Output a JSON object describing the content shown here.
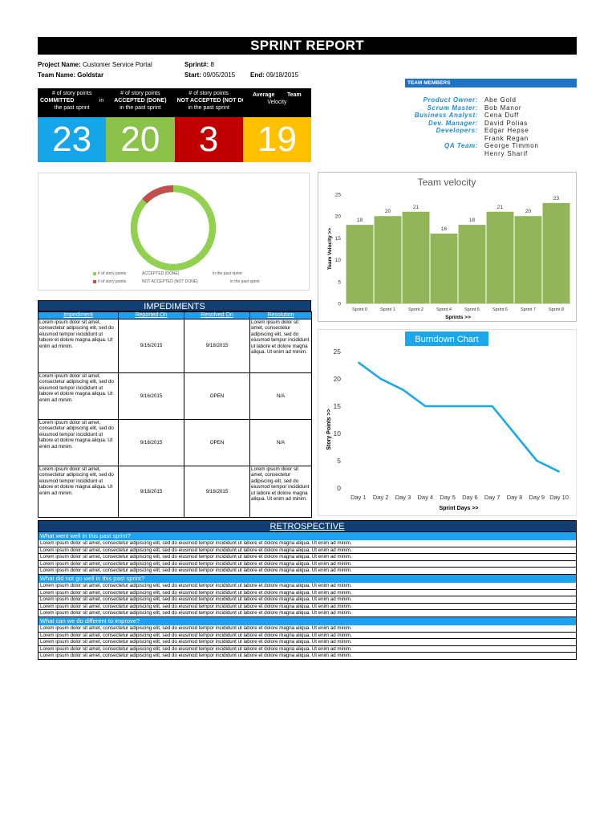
{
  "report": {
    "title": "SPRINT REPORT",
    "project_label": "Project Name:",
    "project_value": "Customer Service Portal",
    "sprint_label": "Sprint#:",
    "sprint_value": "8",
    "team_label": "Team Name:",
    "team_value": "Goldstar",
    "start_label": "Start:",
    "start_value": "09/05/2015",
    "end_label": "End:",
    "end_value": "09/18/2015"
  },
  "team_members": {
    "header": "TEAM MEMBERS",
    "rows": [
      {
        "role": "Product Owner:",
        "name": "Abe Gold"
      },
      {
        "role": "Scrum Master:",
        "name": "Bob Manor"
      },
      {
        "role": "Business Analyst:",
        "name": "Cena Duff"
      },
      {
        "role": "Dev. Manager:",
        "name": "David Polias"
      },
      {
        "role": "Developers:",
        "name": "Edgar Hepse"
      },
      {
        "role": "",
        "name": "Frank Regan"
      },
      {
        "role": "QA Team:",
        "name": "George Timmon"
      },
      {
        "role": "",
        "name": "Henry Sharif"
      }
    ]
  },
  "stats": [
    {
      "line1": "# of story points",
      "bold": "COMMITTED",
      "suffix": "in",
      "line3": "the past sprint",
      "value": "23",
      "color": "#16a5e8"
    },
    {
      "line1": "# of story points",
      "bold": "ACCEPTED (DONE)",
      "suffix": "",
      "line3": "in the past sprint",
      "value": "20",
      "color": "#8bc34a"
    },
    {
      "line1": "# of story points",
      "bold": "NOT ACCEPTED (NOT DONE)",
      "suffix": "",
      "line3": "in the past sprint",
      "value": "3",
      "color": "#c00000"
    },
    {
      "line1": "",
      "bold": "Average        Team",
      "suffix": "",
      "line3": "Velocity",
      "value": "19",
      "color": "#ffc000"
    }
  ],
  "donut": {
    "legend": [
      {
        "a": "# of story points",
        "b": "ACCEPTED (DONE)",
        "c": "in the past sprint",
        "color": "#92d050"
      },
      {
        "a": "# of story points",
        "b": "NOT ACCEPTED (NOT DONE)",
        "c": "in the past sprint",
        "color": "#c0504d"
      }
    ]
  },
  "chart_data": [
    {
      "type": "bar",
      "title": "Team velocity",
      "xlabel": "Sprints >>",
      "ylabel": "Team Velocity >>",
      "categories": [
        "Sprint 0",
        "Sprint 1",
        "Sprint 2",
        "Sprint 4",
        "Sprint 5",
        "Sprint 6",
        "Sprint 7",
        "Sprint 8"
      ],
      "values": [
        18,
        20,
        21,
        16,
        18,
        21,
        20,
        23
      ],
      "ylim": [
        0,
        25
      ],
      "yticks": [
        0,
        5,
        10,
        15,
        20,
        25
      ],
      "color": "#92b55a"
    },
    {
      "type": "line",
      "title": "Burndown Chart",
      "xlabel": "Sprint Days >>",
      "ylabel": "Story Points >>",
      "categories": [
        "Day 1",
        "Day 2",
        "Day 3",
        "Day 4",
        "Day 5",
        "Day 6",
        "Day 7",
        "Day 8",
        "Day 9",
        "Day 10"
      ],
      "values": [
        23,
        20,
        18,
        15,
        15,
        15,
        15,
        10,
        5,
        3
      ],
      "ylim": [
        0,
        25
      ],
      "yticks": [
        0,
        5,
        10,
        15,
        20,
        25
      ],
      "color": "#1aa7ec"
    }
  ],
  "impediments": {
    "title": "IMPEDIMENTS",
    "columns": [
      "Impediment",
      "Reported On",
      "Resolved On",
      "Resolution"
    ],
    "rows": [
      {
        "impediment": "Lorem ipsum dolor sit amet, consectetur adipiscing elit, sed do eiusmod tempor incididunt ut labore et dolore magna aliqua. Ut enim ad minim.",
        "reported": "9/16/2015",
        "resolved": "9/18/2015",
        "resolution": "Lorem ipsum dolor sit amet, consectetur adipiscing elit, sed do eiusmod tempor incididunt ut labore et dolore magna aliqua. Ut enim ad minim."
      },
      {
        "impediment": "Lorem ipsum dolor sit amet, consectetur adipiscing elit, sed do eiusmod tempor incididunt ut labore et dolore magna aliqua. Ut enim ad minim.",
        "reported": "9/16/2015",
        "resolved": "OPEN",
        "resolution": "N/A"
      },
      {
        "impediment": "Lorem ipsum dolor sit amet, consectetur adipiscing elit, sed do eiusmod tempor incididunt ut labore et dolore magna aliqua. Ut enim ad minim.",
        "reported": "9/18/2015",
        "resolved": "OPEN",
        "resolution": "N/A"
      },
      {
        "impediment": "Lorem ipsum dolor sit amet, consectetur adipiscing elit, sed do eiusmod tempor incididunt ut labore et dolore magna aliqua. Ut enim ad minim.",
        "reported": "9/18/2015",
        "resolved": "9/18/2015",
        "resolution": "Lorem ipsum dolor sit amet, consectetur adipiscing elit, sed do eiusmod tempor incididunt ut labore et dolore magna aliqua. Ut enim ad minim."
      }
    ]
  },
  "retrospective": {
    "title": "RETROSPECTIVE",
    "sections": [
      {
        "question": "What went well in this past sprint?",
        "lines": [
          "Lorem ipsum dolor sit amet, consectetur adipiscing elit, sed do eiusmod tempor incididunt ut labore et dolore magna aliqua. Ut enim ad minim.",
          "Lorem ipsum dolor sit amet, consectetur adipiscing elit, sed do eiusmod tempor incididunt ut labore et dolore magna aliqua. Ut enim ad minim.",
          "Lorem ipsum dolor sit amet, consectetur adipiscing elit, sed do eiusmod tempor incididunt ut labore et dolore magna aliqua. Ut enim ad minim.",
          "Lorem ipsum dolor sit amet, consectetur adipiscing elit, sed do eiusmod tempor incididunt ut labore et dolore magna aliqua. Ut enim ad minim.",
          "Lorem ipsum dolor sit amet, consectetur adipiscing elit, sed do eiusmod tempor incididunt ut labore et dolore magna aliqua. Ut enim ad minim."
        ]
      },
      {
        "question": "What did not go well in this past sprint?",
        "lines": [
          "Lorem ipsum dolor sit amet, consectetur adipiscing elit, sed do eiusmod tempor incididunt ut labore et dolore magna aliqua. Ut enim ad minim.",
          "Lorem ipsum dolor sit amet, consectetur adipiscing elit, sed do eiusmod tempor incididunt ut labore et dolore magna aliqua. Ut enim ad minim.",
          "Lorem ipsum dolor sit amet, consectetur adipiscing elit, sed do eiusmod tempor incididunt ut labore et dolore magna aliqua. Ut enim ad minim.",
          "Lorem ipsum dolor sit amet, consectetur adipiscing elit, sed do eiusmod tempor incididunt ut labore et dolore magna aliqua. Ut enim ad minim.",
          "Lorem ipsum dolor sit amet, consectetur adipiscing elit, sed do eiusmod tempor incididunt ut labore et dolore magna aliqua. Ut enim ad minim."
        ]
      },
      {
        "question": "What can we do different to improve?",
        "lines": [
          "Lorem ipsum dolor sit amet, consectetur adipiscing elit, sed do eiusmod tempor incididunt ut labore et dolore magna aliqua. Ut enim ad minim.",
          "Lorem ipsum dolor sit amet, consectetur adipiscing elit, sed do eiusmod tempor incididunt ut labore et dolore magna aliqua. Ut enim ad minim.",
          "Lorem ipsum dolor sit amet, consectetur adipiscing elit, sed do eiusmod tempor incididunt ut labore et dolore magna aliqua. Ut enim ad minim.",
          "Lorem ipsum dolor sit amet, consectetur adipiscing elit, sed do eiusmod tempor incididunt ut labore et dolore magna aliqua. Ut enim ad minim.",
          "Lorem ipsum dolor sit amet, consectetur adipiscing elit, sed do eiusmod tempor incididunt ut labore et dolore magna aliqua. Ut enim ad minim."
        ]
      }
    ]
  }
}
